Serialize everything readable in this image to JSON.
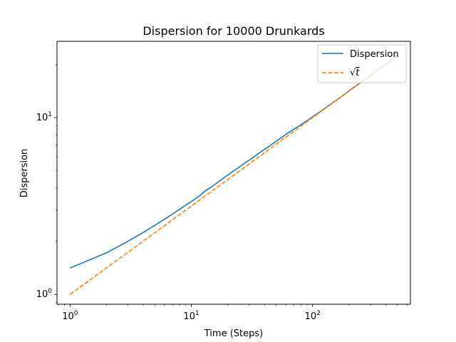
{
  "chart_data": {
    "type": "line",
    "title": "Dispersion for 10000 Drunkards",
    "xlabel": "Time (Steps)",
    "ylabel": "Dispersion",
    "xscale": "log",
    "yscale": "log",
    "xlim": [
      0.78,
      640
    ],
    "ylim": [
      0.88,
      27
    ],
    "x_major_ticks": [
      {
        "value": 1,
        "base": "10",
        "exp": "0"
      },
      {
        "value": 10,
        "base": "10",
        "exp": "1"
      },
      {
        "value": 100,
        "base": "10",
        "exp": "2"
      }
    ],
    "y_major_ticks": [
      {
        "value": 1,
        "base": "10",
        "exp": "0"
      },
      {
        "value": 10,
        "base": "10",
        "exp": "1"
      }
    ],
    "grid": false,
    "legend_position": "upper right",
    "series": [
      {
        "name": "Dispersion",
        "color": "#1f77b4",
        "style": "solid",
        "x": [
          0,
          1,
          2,
          3,
          4,
          5,
          6,
          7,
          8,
          9,
          10,
          12,
          13,
          15,
          17,
          20,
          24,
          28,
          32,
          35,
          40,
          50,
          60,
          70,
          80,
          100,
          120,
          150,
          180,
          200,
          240,
          270,
          300,
          350,
          400,
          450,
          500
        ],
        "y": [
          1.41,
          1.41,
          1.72,
          2.0,
          2.24,
          2.46,
          2.66,
          2.85,
          3.03,
          3.2,
          3.35,
          3.66,
          3.85,
          4.1,
          4.37,
          4.74,
          5.17,
          5.57,
          5.92,
          6.2,
          6.6,
          7.34,
          8.02,
          8.6,
          9.1,
          10.1,
          11.0,
          12.3,
          13.4,
          14.2,
          15.5,
          16.4,
          17.3,
          18.7,
          20.0,
          21.2,
          22.4
        ]
      },
      {
        "name": "√t",
        "legend_label_base": "√",
        "legend_label_var": "t",
        "color": "#ff7f0e",
        "style": "dashed",
        "x": [
          0,
          1,
          2,
          3,
          5,
          10,
          20,
          50,
          100,
          200,
          300,
          400,
          500
        ],
        "y": [
          0,
          1,
          1.414,
          1.732,
          2.236,
          3.162,
          4.472,
          7.071,
          10,
          14.142,
          17.321,
          20,
          22.361
        ]
      }
    ]
  }
}
